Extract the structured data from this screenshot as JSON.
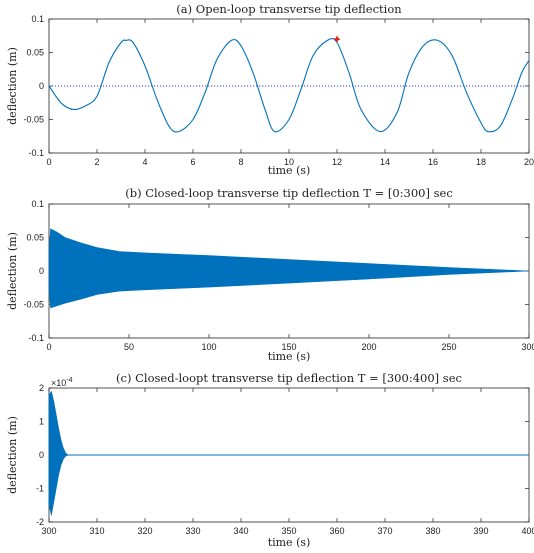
{
  "chart_data": [
    {
      "type": "line",
      "title": "(a) Open-loop transverse tip deflection",
      "xlabel": "time (s)",
      "ylabel": "deflection (m)",
      "xlim": [
        0,
        20
      ],
      "ylim": [
        -0.1,
        0.1
      ],
      "xticks": [
        "0",
        "2",
        "4",
        "6",
        "8",
        "10",
        "12",
        "14",
        "16",
        "18",
        "20"
      ],
      "yticks": [
        "0.1",
        "0.05",
        "0",
        "-0.05",
        "-0.1"
      ],
      "reference_line": {
        "y": 0,
        "style": "dotted",
        "color": "#2b3ccf"
      },
      "series": [
        {
          "color": "#0072BD",
          "x": [
            0,
            0.5,
            1,
            1.5,
            2,
            2.5,
            3,
            3.2,
            3.5,
            4,
            4.5,
            5,
            5.4,
            6,
            6.5,
            7,
            7.6,
            8,
            8.5,
            9,
            9.4,
            10,
            10.5,
            11,
            11.6,
            12,
            12.5,
            13,
            13.8,
            14.5,
            15,
            15.6,
            16.2,
            16.8,
            17.4,
            18,
            18.3,
            18.8,
            19.3,
            19.7,
            20
          ],
          "y": [
            0,
            -0.025,
            -0.035,
            -0.03,
            -0.015,
            0.035,
            0.065,
            0.068,
            0.065,
            0.03,
            -0.02,
            -0.06,
            -0.068,
            -0.05,
            -0.01,
            0.04,
            0.068,
            0.06,
            0.02,
            -0.035,
            -0.068,
            -0.05,
            -0.005,
            0.045,
            0.068,
            0.065,
            0.02,
            -0.035,
            -0.068,
            -0.04,
            0.02,
            0.06,
            0.068,
            0.045,
            -0.01,
            -0.055,
            -0.068,
            -0.06,
            -0.02,
            0.02,
            0.038
          ]
        }
      ],
      "marker": {
        "x": 12,
        "y": 0.07,
        "color": "#e0241b"
      }
    },
    {
      "type": "line",
      "title": "(b) Closed-loop transverse tip deflection T = [0:300] sec",
      "xlabel": "time (s)",
      "ylabel": "deflection (m)",
      "xlim": [
        0,
        300
      ],
      "ylim": [
        -0.1,
        0.1
      ],
      "xticks": [
        "0",
        "50",
        "100",
        "150",
        "200",
        "250",
        "300"
      ],
      "yticks": [
        "0.1",
        "0.05",
        "0",
        "-0.05",
        "-0.1"
      ],
      "reference_line": {
        "y": 0,
        "style": "dotted",
        "color": "#2b3ccf"
      },
      "series": [
        {
          "color": "#0072BD",
          "envelope": true,
          "x": [
            0,
            1,
            5,
            10,
            20,
            30,
            44,
            60,
            100,
            150,
            200,
            250,
            300
          ],
          "upper": [
            0.03,
            0.063,
            0.058,
            0.05,
            0.042,
            0.035,
            0.029,
            0.027,
            0.023,
            0.017,
            0.011,
            0.005,
            0.0
          ],
          "lower": [
            -0.03,
            -0.055,
            -0.052,
            -0.048,
            -0.042,
            -0.035,
            -0.03,
            -0.028,
            -0.024,
            -0.018,
            -0.012,
            -0.005,
            0.0
          ]
        }
      ]
    },
    {
      "type": "line",
      "title": "(c) Closed-loopt transverse tip deflection T = [300:400] sec",
      "xlabel": "time (s)",
      "ylabel": "deflection (m)",
      "xlim": [
        300,
        400
      ],
      "ylim": [
        -2,
        2
      ],
      "exponent_label": "×10",
      "exponent_power": "-4",
      "xticks": [
        "300",
        "310",
        "320",
        "330",
        "340",
        "350",
        "360",
        "370",
        "380",
        "390",
        "400"
      ],
      "yticks": [
        "2",
        "1",
        "0",
        "-1",
        "-2"
      ],
      "reference_line": {
        "y": 0,
        "style": "dotted",
        "color": "#2b3ccf"
      },
      "series": [
        {
          "color": "#0072BD",
          "envelope": true,
          "x": [
            300,
            300.5,
            301,
            301.5,
            302,
            302.5,
            303,
            303.5,
            304,
            400
          ],
          "upper": [
            1.8,
            1.9,
            1.6,
            1.2,
            0.8,
            0.45,
            0.2,
            0.05,
            0.0,
            0.0
          ],
          "lower": [
            -1.5,
            -1.8,
            -1.4,
            -1.0,
            -0.6,
            -0.3,
            -0.12,
            -0.03,
            0.0,
            0.0
          ]
        }
      ]
    }
  ]
}
